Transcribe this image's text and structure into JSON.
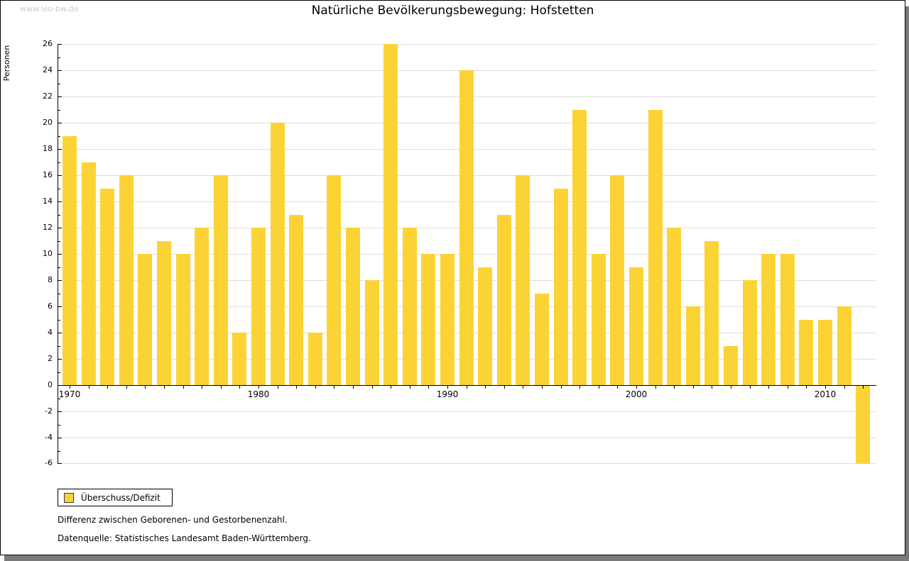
{
  "watermark": "www.leo-bw.de",
  "title": "Natürliche Bevölkerungsbewegung: Hofstetten",
  "legend": {
    "label": "Überschuss/Defizit"
  },
  "notes": [
    "Differenz zwischen Geborenen- und Gestorbenenzahl.",
    "Datenquelle: Statistisches Landesamt Baden-Württemberg."
  ],
  "colors": {
    "bar": "#fbd335",
    "grid": "#dddddd",
    "axis": "#000000",
    "watermark": "#cccccc",
    "shadow": "#7a7a7a"
  },
  "chart_data": {
    "type": "bar",
    "title": "Natürliche Bevölkerungsbewegung: Hofstetten",
    "xlabel": "",
    "ylabel": "Personen",
    "ylim": [
      -6,
      26
    ],
    "ytick_step": 2,
    "grid": true,
    "legend_position": "bottom-left",
    "xticks": [
      1970,
      1980,
      1990,
      2000,
      2010
    ],
    "series": [
      {
        "name": "Überschuss/Defizit",
        "color": "#fbd335"
      }
    ],
    "categories": [
      1970,
      1971,
      1972,
      1973,
      1974,
      1975,
      1976,
      1977,
      1978,
      1979,
      1980,
      1981,
      1982,
      1983,
      1984,
      1985,
      1986,
      1987,
      1988,
      1989,
      1990,
      1991,
      1992,
      1993,
      1994,
      1995,
      1996,
      1997,
      1998,
      1999,
      2000,
      2001,
      2002,
      2003,
      2004,
      2005,
      2006,
      2007,
      2008,
      2009,
      2010,
      2011,
      2012
    ],
    "values": [
      19,
      17,
      15,
      16,
      10,
      11,
      10,
      12,
      16,
      4,
      12,
      20,
      13,
      4,
      16,
      12,
      8,
      26,
      12,
      10,
      10,
      24,
      9,
      13,
      16,
      7,
      15,
      21,
      10,
      16,
      9,
      21,
      12,
      6,
      11,
      3,
      8,
      10,
      10,
      5,
      5,
      6,
      -6
    ]
  }
}
